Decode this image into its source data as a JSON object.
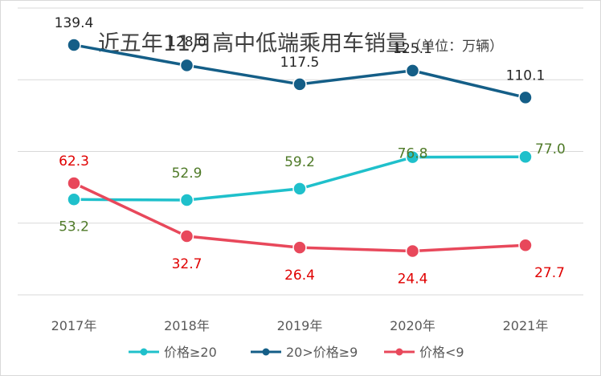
{
  "chart_data": {
    "type": "line",
    "title": "近五年11月高中低端乘用车销量",
    "subtitle": "（单位：万辆）",
    "categories": [
      "2017年",
      "2018年",
      "2019年",
      "2020年",
      "2021年"
    ],
    "series": [
      {
        "name": "价格≥20",
        "values": [
          53.2,
          52.9,
          59.2,
          76.8,
          77.0
        ],
        "color": "#1fc0cb",
        "label_color": "#4f7a28"
      },
      {
        "name": "20>价格≥9",
        "values": [
          139.4,
          128.0,
          117.5,
          125.1,
          110.1
        ],
        "color": "#145e87",
        "label_color": "#262626"
      },
      {
        "name": "价格<9",
        "values": [
          62.3,
          32.7,
          26.4,
          24.4,
          27.7
        ],
        "color": "#e8485b",
        "label_color": "#e00000"
      }
    ],
    "ylim": [
      0,
      160
    ],
    "grid": true,
    "legend": "bottom",
    "gridline_color": "#d9d9d9",
    "axis_label_color": "#595959"
  }
}
